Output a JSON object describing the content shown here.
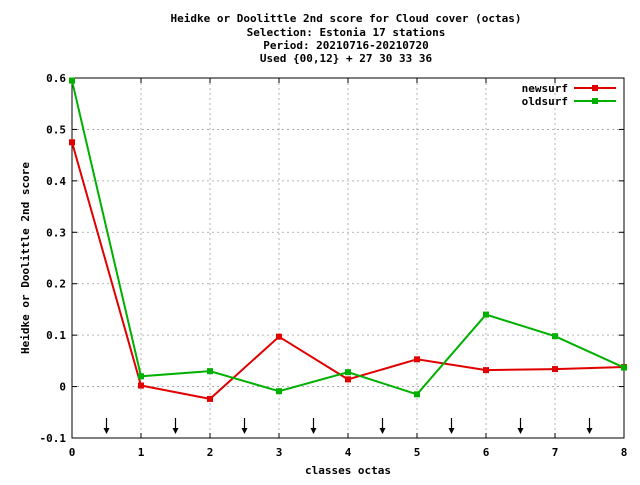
{
  "chart_data": {
    "type": "line",
    "title_lines": [
      "Heidke or Doolittle 2nd score  for Cloud cover (octas)",
      "Selection: Estonia     17 stations",
      "Period: 20210716-20210720",
      "Used {00,12} + 27 30 33 36"
    ],
    "xlabel": "classes octas",
    "ylabel": "Heidke or Doolittle 2nd score",
    "xlim": [
      0,
      8
    ],
    "ylim": [
      -0.1,
      0.6
    ],
    "x_ticks": [
      "0",
      "1",
      "2",
      "3",
      "4",
      "5",
      "6",
      "7",
      "8"
    ],
    "y_ticks": [
      "-0.1",
      "0",
      "0.1",
      "0.2",
      "0.3",
      "0.4",
      "0.5",
      "0.6"
    ],
    "grid": true,
    "legend_position": "top-right",
    "x": [
      0,
      1,
      2,
      3,
      4,
      5,
      6,
      7,
      8
    ],
    "series": [
      {
        "name": "newsurf",
        "color": "#e00000",
        "values": [
          0.475,
          0.002,
          -0.024,
          0.097,
          0.014,
          0.053,
          0.032,
          0.034,
          0.038
        ]
      },
      {
        "name": "oldsurf",
        "color": "#00b000",
        "values": [
          0.595,
          0.02,
          0.03,
          -0.009,
          0.028,
          -0.015,
          0.14,
          0.098,
          0.037
        ]
      }
    ],
    "arrow_markers_x": [
      0.5,
      1.5,
      2.5,
      3.5,
      4.5,
      5.5,
      6.5,
      7.5
    ]
  }
}
